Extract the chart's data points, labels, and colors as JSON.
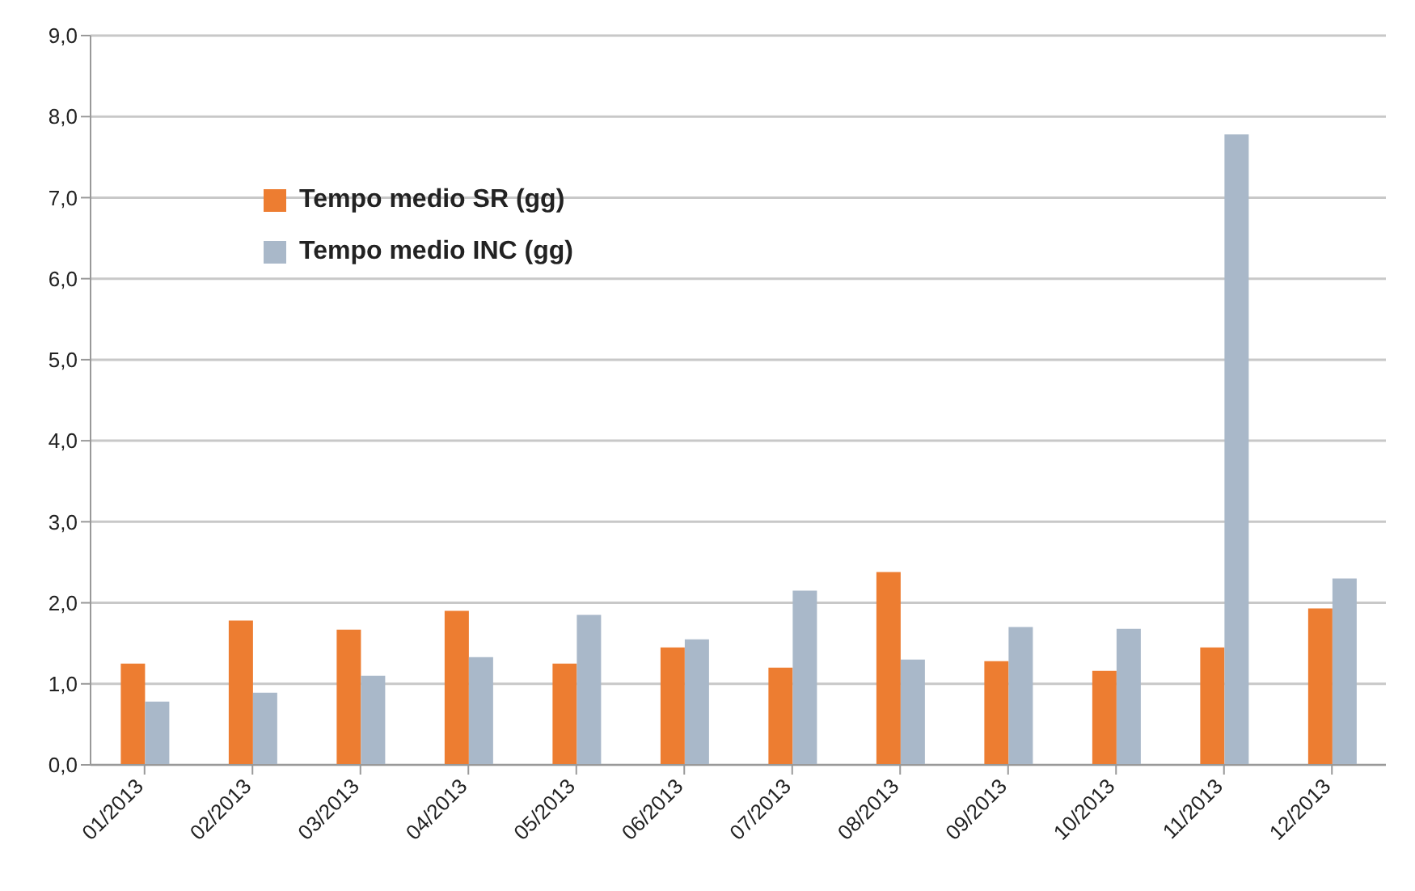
{
  "chart_data": {
    "type": "bar",
    "categories": [
      "01/2013",
      "02/2013",
      "03/2013",
      "04/2013",
      "05/2013",
      "06/2013",
      "07/2013",
      "08/2013",
      "09/2013",
      "10/2013",
      "11/2013",
      "12/2013"
    ],
    "series": [
      {
        "name": "Tempo medio SR (gg)",
        "color": "#ed7d31",
        "values": [
          1.25,
          1.78,
          1.67,
          1.9,
          1.25,
          1.45,
          1.2,
          2.38,
          1.28,
          1.16,
          1.45,
          1.93
        ]
      },
      {
        "name": "Tempo medio INC (gg)",
        "color": "#a9b8c9",
        "values": [
          0.78,
          0.89,
          1.1,
          1.33,
          1.85,
          1.55,
          2.15,
          1.3,
          1.7,
          1.68,
          7.78,
          2.3
        ]
      }
    ],
    "ylim": [
      0,
      9
    ],
    "yticks": [
      {
        "value": 0,
        "label": "0,0"
      },
      {
        "value": 1,
        "label": "1,0"
      },
      {
        "value": 2,
        "label": "2,0"
      },
      {
        "value": 3,
        "label": "3,0"
      },
      {
        "value": 4,
        "label": "4,0"
      },
      {
        "value": 5,
        "label": "5,0"
      },
      {
        "value": 6,
        "label": "6,0"
      },
      {
        "value": 7,
        "label": "7,0"
      },
      {
        "value": 8,
        "label": "8,0"
      },
      {
        "value": 9,
        "label": "9,0"
      }
    ],
    "grid": "y",
    "legend": "top left"
  }
}
